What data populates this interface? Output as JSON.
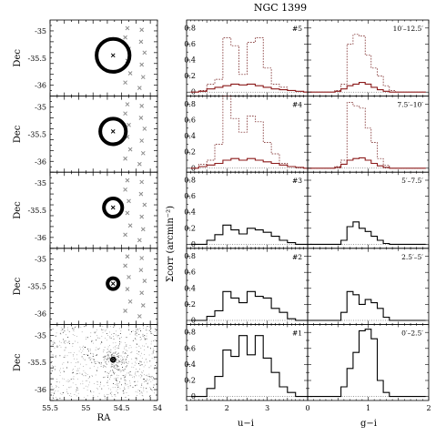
{
  "title": "NGC 1399",
  "left_column": {
    "xlabel": "RA",
    "ylabel": "Dec",
    "xlim": [
      55.5,
      54
    ],
    "ylim": [
      -36.2,
      -34.8
    ],
    "xticks": [
      "55.5",
      "55",
      "54.5",
      "54"
    ],
    "yticks": [
      "-35",
      "-35.5",
      "-36"
    ],
    "center": {
      "ra": 54.62,
      "dec": -35.45
    },
    "rings_arcmin": [
      [
        10,
        12.5
      ],
      [
        7.5,
        10
      ],
      [
        5,
        7.5
      ],
      [
        2.5,
        5
      ],
      [
        0,
        2.5
      ]
    ],
    "bg_fields": [
      {
        "ra": 54.42,
        "dec": -34.95
      },
      {
        "ra": 54.22,
        "dec": -34.98
      },
      {
        "ra": 54.45,
        "dec": -35.12
      },
      {
        "ra": 54.23,
        "dec": -35.2
      },
      {
        "ra": 54.4,
        "dec": -35.33
      },
      {
        "ra": 54.18,
        "dec": -35.4
      },
      {
        "ra": 54.42,
        "dec": -35.55
      },
      {
        "ra": 54.22,
        "dec": -35.62
      },
      {
        "ra": 54.38,
        "dec": -35.78
      },
      {
        "ra": 54.2,
        "dec": -35.85
      },
      {
        "ra": 54.45,
        "dec": -35.95
      },
      {
        "ra": 54.25,
        "dec": -36.05
      }
    ]
  },
  "chart_data": {
    "type": "line",
    "ylabel": "Σcorr (arcmin⁻²)",
    "ylim": [
      -0.05,
      0.9
    ],
    "yticks": [
      "0",
      "0.2",
      "0.4",
      "0.6",
      "0.8"
    ],
    "panels": [
      {
        "id": "#5",
        "ring": "10′–12.5′",
        "ui": {
          "x": [
            1.2,
            1.4,
            1.6,
            1.8,
            2.0,
            2.2,
            2.4,
            2.6,
            2.8,
            3.0,
            3.2,
            3.4,
            3.6,
            3.8,
            4.0
          ],
          "corr": [
            0,
            0.01,
            0.04,
            0.06,
            0.08,
            0.1,
            0.09,
            0.1,
            0.08,
            0.06,
            0.04,
            0.03,
            0.02,
            0.01,
            0
          ],
          "raw": [
            0,
            0.02,
            0.1,
            0.16,
            0.68,
            0.58,
            0.22,
            0.62,
            0.68,
            0.3,
            0.1,
            0.06,
            0.02,
            0.01,
            0
          ]
        },
        "gi": {
          "x": [
            0.1,
            0.2,
            0.3,
            0.4,
            0.5,
            0.6,
            0.7,
            0.8,
            0.9,
            1.0,
            1.1,
            1.2,
            1.3,
            1.4,
            1.5,
            1.6,
            1.7,
            1.8,
            1.9
          ],
          "corr": [
            0,
            0,
            0,
            0,
            0.01,
            0.04,
            0.08,
            0.1,
            0.12,
            0.1,
            0.06,
            0.03,
            0.01,
            0,
            0,
            0,
            0,
            0,
            0
          ],
          "raw": [
            0,
            0,
            0,
            0,
            0.02,
            0.1,
            0.6,
            0.72,
            0.7,
            0.46,
            0.3,
            0.2,
            0.08,
            0.02,
            0,
            0,
            0,
            0,
            0
          ]
        }
      },
      {
        "id": "#4",
        "ring": "7.5′–10′",
        "ui": {
          "x": [
            1.2,
            1.4,
            1.6,
            1.8,
            2.0,
            2.2,
            2.4,
            2.6,
            2.8,
            3.0,
            3.2,
            3.4,
            3.6,
            3.8,
            4.0
          ],
          "corr": [
            0,
            0.02,
            0.04,
            0.06,
            0.1,
            0.12,
            0.1,
            0.12,
            0.1,
            0.08,
            0.06,
            0.04,
            0.02,
            0.01,
            0
          ],
          "raw": [
            0,
            0.05,
            0.1,
            0.3,
            0.9,
            0.62,
            0.45,
            0.65,
            0.58,
            0.32,
            0.18,
            0.06,
            0.02,
            0.01,
            0
          ]
        },
        "gi": {
          "x": [
            0.1,
            0.2,
            0.3,
            0.4,
            0.5,
            0.6,
            0.7,
            0.8,
            0.9,
            1.0,
            1.1,
            1.2,
            1.3,
            1.4,
            1.5,
            1.6,
            1.7,
            1.8,
            1.9
          ],
          "corr": [
            0,
            0,
            0,
            0,
            0.01,
            0.05,
            0.1,
            0.12,
            0.13,
            0.1,
            0.06,
            0.03,
            0.01,
            0,
            0,
            0,
            0,
            0,
            0
          ],
          "raw": [
            0,
            0,
            0,
            0,
            0.02,
            0.1,
            0.82,
            0.78,
            0.75,
            0.5,
            0.32,
            0.12,
            0.04,
            0,
            0,
            0,
            0,
            0,
            0
          ]
        }
      },
      {
        "id": "#3",
        "ring": "5′–7.5′",
        "ui": {
          "x": [
            1.2,
            1.4,
            1.6,
            1.8,
            2.0,
            2.2,
            2.4,
            2.6,
            2.8,
            3.0,
            3.2,
            3.4,
            3.6,
            3.8,
            4.0
          ],
          "corr": [
            0,
            0,
            0.05,
            0.12,
            0.24,
            0.18,
            0.13,
            0.2,
            0.18,
            0.15,
            0.1,
            0.05,
            0.02,
            0,
            0
          ]
        },
        "gi": {
          "x": [
            0.1,
            0.2,
            0.3,
            0.4,
            0.5,
            0.6,
            0.7,
            0.8,
            0.9,
            1.0,
            1.1,
            1.2,
            1.3,
            1.4,
            1.5,
            1.6,
            1.7,
            1.8,
            1.9
          ],
          "corr": [
            0,
            0,
            0,
            0,
            0,
            0.05,
            0.22,
            0.28,
            0.2,
            0.16,
            0.1,
            0.05,
            0.01,
            0,
            0,
            0,
            0,
            0,
            0
          ]
        }
      },
      {
        "id": "#2",
        "ring": "2.5′–5′",
        "ui": {
          "x": [
            1.2,
            1.4,
            1.6,
            1.8,
            2.0,
            2.2,
            2.4,
            2.6,
            2.8,
            3.0,
            3.2,
            3.4,
            3.6,
            3.8,
            4.0
          ],
          "corr": [
            0,
            0,
            0.05,
            0.12,
            0.36,
            0.28,
            0.22,
            0.36,
            0.3,
            0.28,
            0.15,
            0.1,
            0.02,
            0,
            0
          ]
        },
        "gi": {
          "x": [
            0.1,
            0.2,
            0.3,
            0.4,
            0.5,
            0.6,
            0.7,
            0.8,
            0.9,
            1.0,
            1.1,
            1.2,
            1.3,
            1.4,
            1.5,
            1.6,
            1.7,
            1.8,
            1.9
          ],
          "corr": [
            0,
            0,
            0,
            0,
            0,
            0.1,
            0.36,
            0.32,
            0.2,
            0.26,
            0.22,
            0.15,
            0.04,
            0,
            0,
            0,
            0,
            0,
            0
          ]
        }
      },
      {
        "id": "#1",
        "ring": "0′–2.5′",
        "ui": {
          "x": [
            1.2,
            1.4,
            1.6,
            1.8,
            2.0,
            2.2,
            2.4,
            2.6,
            2.8,
            3.0,
            3.2,
            3.4,
            3.6,
            3.8,
            4.0
          ],
          "corr": [
            0,
            0,
            0.1,
            0.25,
            0.58,
            0.5,
            0.76,
            0.52,
            0.76,
            0.48,
            0.3,
            0.12,
            0.05,
            0,
            0
          ]
        },
        "gi": {
          "x": [
            0.1,
            0.2,
            0.3,
            0.4,
            0.5,
            0.6,
            0.7,
            0.8,
            0.9,
            1.0,
            1.1,
            1.2,
            1.3,
            1.4,
            1.5,
            1.6,
            1.7,
            1.8,
            1.9
          ],
          "corr": [
            0,
            0,
            0,
            0,
            0,
            0.12,
            0.35,
            0.55,
            0.82,
            0.84,
            0.72,
            0.2,
            0.05,
            0,
            0,
            0,
            0,
            0,
            0
          ]
        }
      }
    ],
    "ui_axis": {
      "xlabel": "u−i",
      "xlim": [
        1,
        4
      ],
      "xticks": [
        "1",
        "2",
        "3"
      ]
    },
    "gi_axis": {
      "xlabel": "g−i",
      "xlim": [
        0,
        2
      ],
      "xticks": [
        "0",
        "1",
        "2"
      ]
    },
    "colors": {
      "corr": "#000000",
      "corr_top": "#8b1a1a",
      "raw": "#6b1010"
    }
  }
}
